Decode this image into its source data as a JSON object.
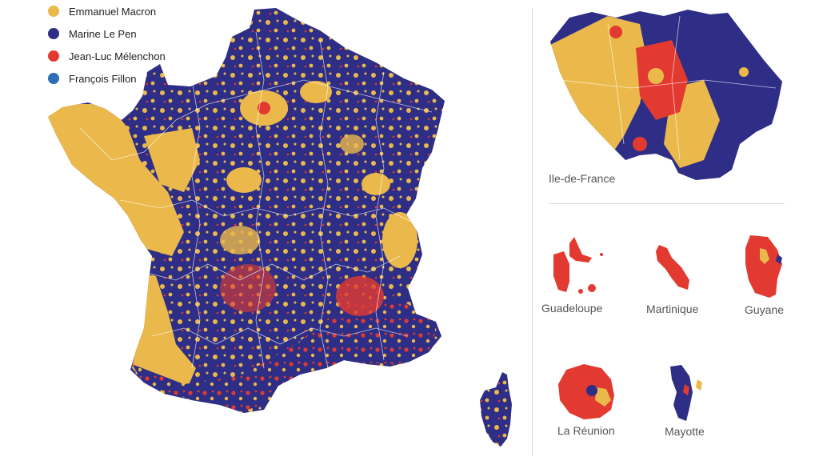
{
  "colors": {
    "macron": "#ebb94b",
    "le_pen": "#2e2e86",
    "melenchon": "#e23a30",
    "fillon": "#2f6db5"
  },
  "legend": [
    {
      "label": "Emmanuel Macron",
      "color": "#ebb94b"
    },
    {
      "label": "Marine Le Pen",
      "color": "#2e2e86"
    },
    {
      "label": "Jean-Luc Mélenchon",
      "color": "#e23a30"
    },
    {
      "label": "François Fillon",
      "color": "#2f6db5"
    }
  ],
  "regions": {
    "ile_de_france": "Ile-de-France",
    "guadeloupe": "Guadeloupe",
    "martinique": "Martinique",
    "guyane": "Guyane",
    "la_reunion": "La Réunion",
    "mayotte": "Mayotte"
  }
}
